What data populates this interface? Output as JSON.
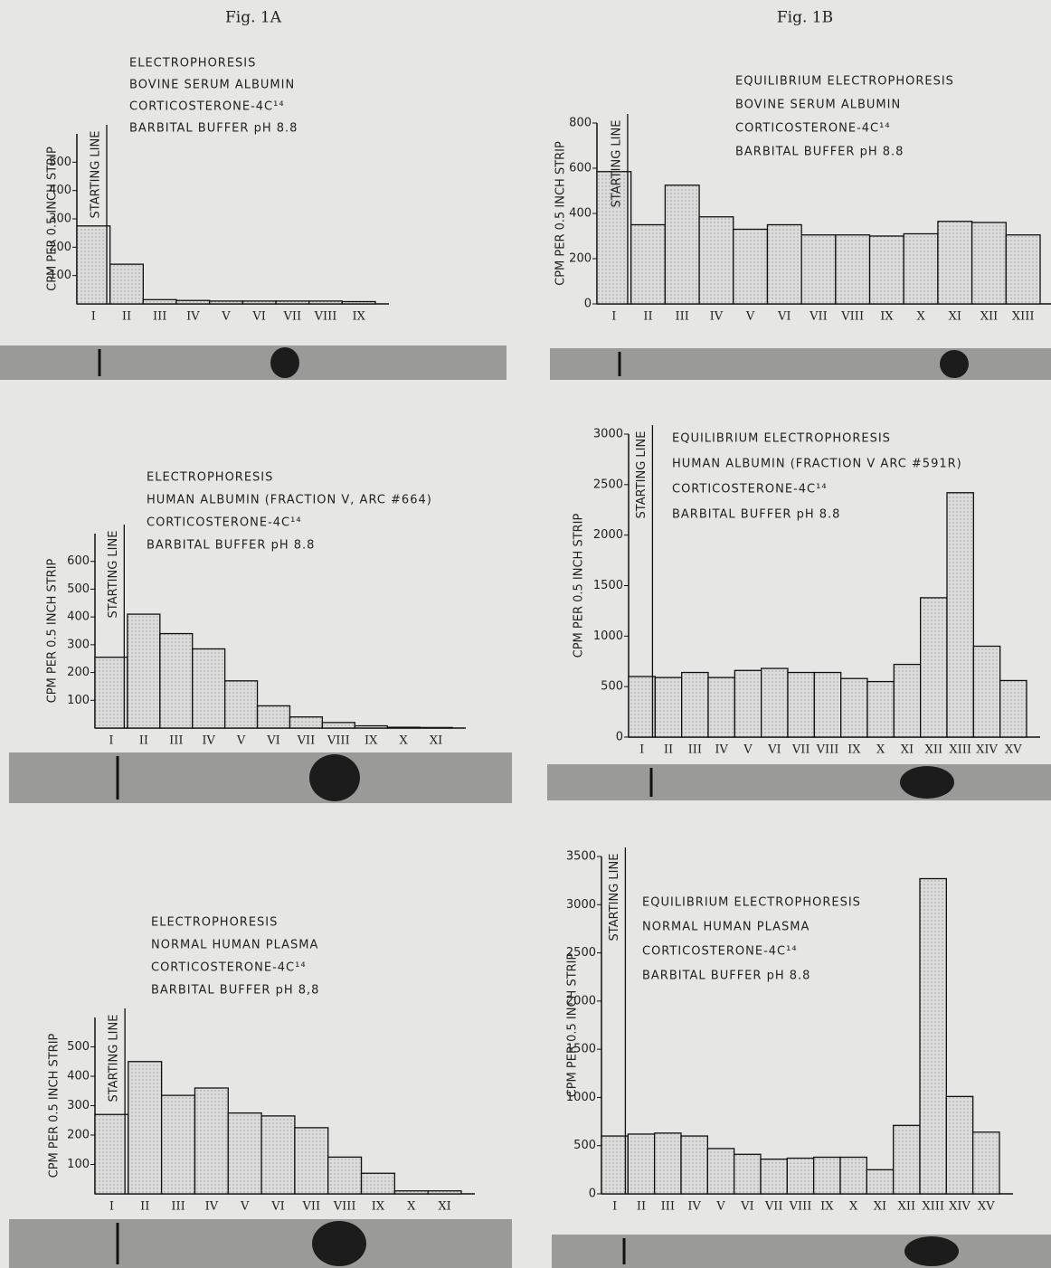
{
  "figure_labels": [
    "Fig. 1A",
    "Fig. 1B"
  ],
  "chart_data": [
    {
      "type": "bar",
      "title_lines": [
        "ELECTROPHORESIS",
        "BOVINE SERUM ALBUMIN",
        "CORTICOSTERONE-4C¹⁴",
        "BARBITAL BUFFER pH 8.8"
      ],
      "y_label": "CPM PER 0.5 INCH STRIP",
      "annotation": "STARTING LINE",
      "categories": [
        "I",
        "II",
        "III",
        "IV",
        "V",
        "VI",
        "VII",
        "VIII",
        "IX"
      ],
      "values": [
        275,
        140,
        15,
        12,
        10,
        10,
        10,
        10,
        8
      ],
      "ylim": [
        0,
        600
      ],
      "yticks": [
        100,
        200,
        300,
        400,
        500
      ]
    },
    {
      "type": "bar",
      "title_lines": [
        "EQUILIBRIUM ELECTROPHORESIS",
        "BOVINE SERUM ALBUMIN",
        "CORTICOSTERONE-4C¹⁴",
        "BARBITAL BUFFER pH 8.8"
      ],
      "y_label": "CPM PER 0.5 INCH STRIP",
      "annotation": "STARTING LINE",
      "categories": [
        "I",
        "II",
        "III",
        "IV",
        "V",
        "VI",
        "VII",
        "VIII",
        "IX",
        "X",
        "XI",
        "XII",
        "XIII"
      ],
      "values": [
        585,
        350,
        525,
        385,
        330,
        350,
        305,
        305,
        300,
        310,
        365,
        360,
        305
      ],
      "ylim": [
        0,
        800
      ],
      "yticks": [
        0,
        200,
        400,
        600,
        800
      ]
    },
    {
      "type": "bar",
      "title_lines": [
        "ELECTROPHORESIS",
        "HUMAN ALBUMIN (FRACTION V, ARC #664)",
        "CORTICOSTERONE-4C¹⁴",
        "BARBITAL BUFFER pH 8.8"
      ],
      "y_label": "CPM PER 0.5 INCH STRIP",
      "annotation": "STARTING LINE",
      "categories": [
        "I",
        "II",
        "III",
        "IV",
        "V",
        "VI",
        "VII",
        "VIII",
        "IX",
        "X",
        "XI"
      ],
      "values": [
        255,
        410,
        340,
        285,
        170,
        80,
        40,
        20,
        8,
        3,
        2
      ],
      "ylim": [
        0,
        700
      ],
      "yticks": [
        100,
        200,
        300,
        400,
        500,
        600
      ]
    },
    {
      "type": "bar",
      "title_lines": [
        "EQUILIBRIUM ELECTROPHORESIS",
        "HUMAN ALBUMIN (FRACTION V ARC #591R)",
        "CORTICOSTERONE-4C¹⁴",
        "BARBITAL BUFFER pH 8.8"
      ],
      "y_label": "CPM PER 0.5 INCH STRIP",
      "annotation": "STARTING LINE",
      "categories": [
        "I",
        "II",
        "III",
        "IV",
        "V",
        "VI",
        "VII",
        "VIII",
        "IX",
        "X",
        "XI",
        "XII",
        "XIII",
        "XIV",
        "XV"
      ],
      "values": [
        600,
        590,
        640,
        590,
        660,
        680,
        640,
        640,
        580,
        550,
        720,
        1380,
        2420,
        900,
        560
      ],
      "ylim": [
        0,
        3000
      ],
      "yticks": [
        0,
        500,
        1000,
        1500,
        2000,
        2500,
        3000
      ]
    },
    {
      "type": "bar",
      "title_lines": [
        "ELECTROPHORESIS",
        "NORMAL HUMAN PLASMA",
        "CORTICOSTERONE-4C¹⁴",
        "BARBITAL BUFFER pH 8,8"
      ],
      "y_label": "CPM PER 0.5 INCH STRIP",
      "annotation": "STARTING LINE",
      "categories": [
        "I",
        "II",
        "III",
        "IV",
        "V",
        "VI",
        "VII",
        "VIII",
        "IX",
        "X",
        "XI"
      ],
      "values": [
        270,
        450,
        335,
        360,
        275,
        265,
        225,
        125,
        70,
        10,
        10
      ],
      "ylim": [
        0,
        600
      ],
      "yticks": [
        100,
        200,
        300,
        400,
        500
      ]
    },
    {
      "type": "bar",
      "title_lines": [
        "EQUILIBRIUM ELECTROPHORESIS",
        "NORMAL HUMAN PLASMA",
        "CORTICOSTERONE-4C¹⁴",
        "BARBITAL BUFFER pH 8.8"
      ],
      "y_label": "CPM PER 0.5 INCH STRIP",
      "annotation": "STARTING LINE",
      "categories": [
        "I",
        "II",
        "III",
        "IV",
        "V",
        "VI",
        "VII",
        "VIII",
        "IX",
        "X",
        "XI",
        "XII",
        "XIII",
        "XIV",
        "XV"
      ],
      "values": [
        600,
        620,
        630,
        600,
        470,
        410,
        360,
        370,
        380,
        380,
        250,
        710,
        3270,
        1010,
        640
      ],
      "ylim": [
        0,
        3500
      ],
      "yticks": [
        0,
        500,
        1000,
        1500,
        2000,
        2500,
        3000,
        3500
      ]
    }
  ]
}
